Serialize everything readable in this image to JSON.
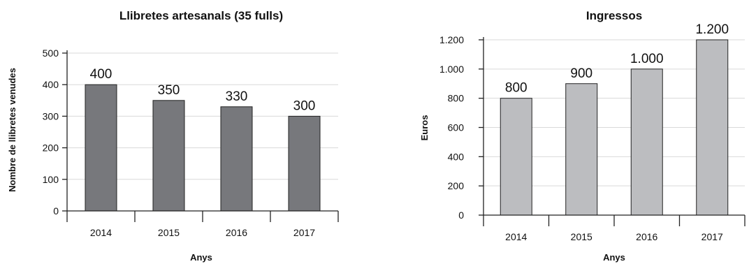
{
  "chart_data": [
    {
      "type": "bar",
      "title": "Llibretes artesanals (35 fulls)",
      "xlabel": "Anys",
      "ylabel": "Nombre de llibretes venudes",
      "categories": [
        "2014",
        "2015",
        "2016",
        "2017"
      ],
      "values": [
        400,
        350,
        330,
        300
      ],
      "data_labels": [
        "400",
        "350",
        "330",
        "300"
      ],
      "ylim": [
        0,
        500
      ],
      "yticks": [
        0,
        100,
        200,
        300,
        400,
        500
      ],
      "ytick_labels": [
        "0",
        "100",
        "200",
        "300",
        "400",
        "500"
      ],
      "bar_color": "#77787c",
      "grid": true,
      "legend": "none"
    },
    {
      "type": "bar",
      "title": "Ingressos",
      "xlabel": "Anys",
      "ylabel": "Euros",
      "categories": [
        "2014",
        "2015",
        "2016",
        "2017"
      ],
      "values": [
        800,
        900,
        1000,
        1200
      ],
      "data_labels": [
        "800",
        "900",
        "1.000",
        "1.200"
      ],
      "ylim": [
        0,
        1200
      ],
      "yticks": [
        0,
        200,
        400,
        600,
        800,
        1000,
        1200
      ],
      "ytick_labels": [
        "0",
        "200",
        "400",
        "600",
        "800",
        "1.000",
        "1.200"
      ],
      "bar_color": "#bcbdc0",
      "grid": true,
      "legend": "none"
    }
  ]
}
